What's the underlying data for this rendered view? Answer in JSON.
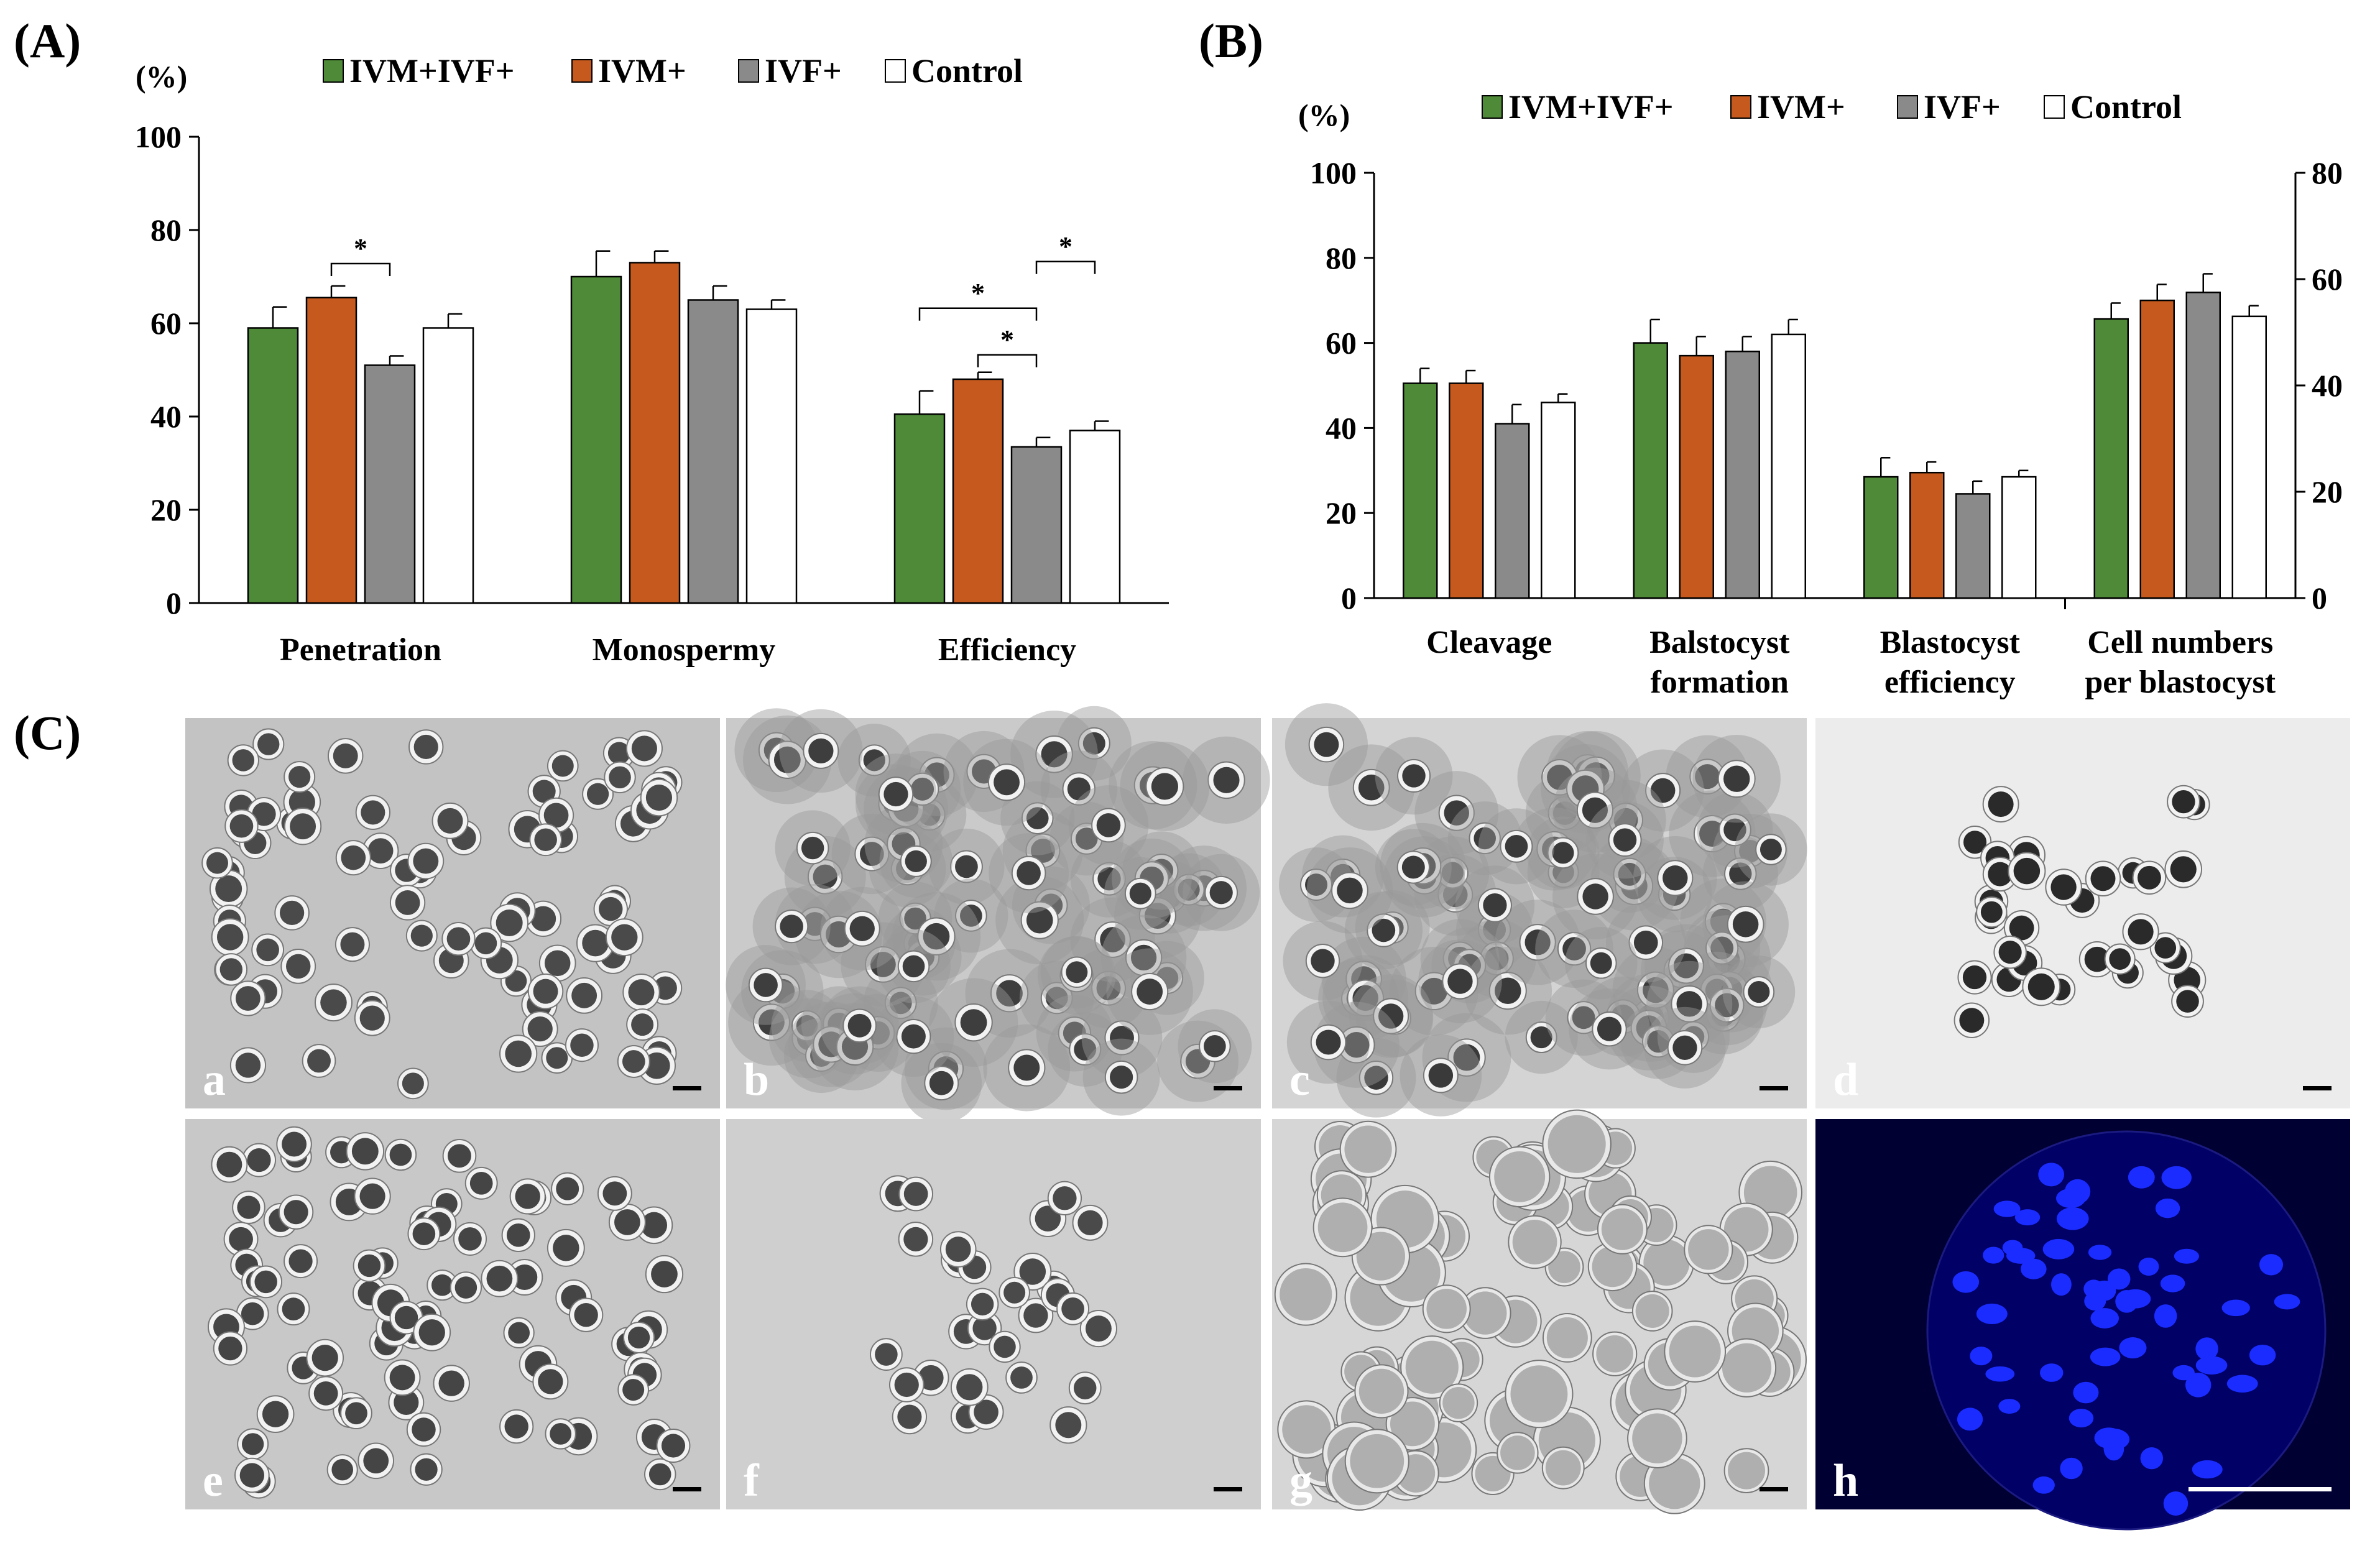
{
  "figure": {
    "panels": {
      "A": "(A)",
      "B": "(B)",
      "C": "(C)"
    },
    "legend": [
      {
        "name": "IVM+IVF+",
        "color": "#4e8a37"
      },
      {
        "name": "IVM+",
        "color": "#c65a1e"
      },
      {
        "name": "IVF+",
        "color": "#8a8a8a"
      },
      {
        "name": "Control",
        "color": "#ffffff"
      }
    ],
    "colors": {
      "axis": "#000000",
      "nuclei_background": "#000033",
      "nuclei": "#1a2cff"
    }
  },
  "chart_data": [
    {
      "type": "bar",
      "panel": "A",
      "unit": "(%)",
      "ylim": [
        0,
        100
      ],
      "yticks": [
        "0",
        "20",
        "40",
        "60",
        "80",
        "100"
      ],
      "categories": [
        "Penetration",
        "Monospermy",
        "Efficiency"
      ],
      "series": [
        {
          "name": "IVM+IVF+",
          "values": [
            59,
            70,
            40.5
          ],
          "errors": [
            4.5,
            5.5,
            5
          ]
        },
        {
          "name": "IVM+",
          "values": [
            65.5,
            73,
            48
          ],
          "errors": [
            2.5,
            2.5,
            1.5
          ]
        },
        {
          "name": "IVF+",
          "values": [
            51,
            65,
            33.5
          ],
          "errors": [
            2,
            3,
            2
          ]
        },
        {
          "name": "Control",
          "values": [
            59,
            63,
            37
          ],
          "errors": [
            3,
            2,
            2
          ]
        }
      ],
      "significance": [
        {
          "category": 0,
          "from": 1,
          "to": 2,
          "label": "*"
        },
        {
          "category": 2,
          "from": 2,
          "to": 3,
          "label": "*"
        },
        {
          "category": 2,
          "from": 0,
          "to": 2,
          "label": "*"
        },
        {
          "category": 2,
          "from": 1,
          "to": 2,
          "label": "*"
        }
      ]
    },
    {
      "type": "bar",
      "panel": "B",
      "unit": "(%)",
      "ylim": [
        0,
        100
      ],
      "yticks": [
        "0",
        "20",
        "40",
        "60",
        "80",
        "100"
      ],
      "y2lim": [
        0,
        80
      ],
      "y2ticks": [
        "0",
        "20",
        "40",
        "60",
        "80"
      ],
      "categories": [
        [
          "Cleavage"
        ],
        [
          "Balstocyst",
          "formation"
        ],
        [
          "Blastocyst",
          "efficiency"
        ],
        [
          "Cell numbers",
          "per blastocyst"
        ]
      ],
      "secondary_axis_category": 3,
      "series": [
        {
          "name": "IVM+IVF+",
          "values": [
            50.5,
            60,
            28.5,
            52.5
          ],
          "errors": [
            3.5,
            5.5,
            4.5,
            3
          ]
        },
        {
          "name": "IVM+",
          "values": [
            50.5,
            57,
            29.5,
            56
          ],
          "errors": [
            3,
            4.5,
            2.5,
            3
          ]
        },
        {
          "name": "IVF+",
          "values": [
            41,
            58,
            24.5,
            57.5
          ],
          "errors": [
            4.5,
            3.5,
            3,
            3.5
          ]
        },
        {
          "name": "Control",
          "values": [
            46,
            62,
            28.5,
            53
          ],
          "errors": [
            2,
            3.5,
            1.5,
            2
          ]
        }
      ]
    }
  ],
  "micrographs": [
    {
      "letter": "a",
      "tone": "#c3c3c3",
      "cell": "#4a4a4a"
    },
    {
      "letter": "b",
      "tone": "#cacaca",
      "cell": "#3e3e3e"
    },
    {
      "letter": "c",
      "tone": "#d4d4d4",
      "cell": "#3a3a3a"
    },
    {
      "letter": "d",
      "tone": "#ececec",
      "cell": "#2a2a2a"
    },
    {
      "letter": "e",
      "tone": "#c8c8c8",
      "cell": "#454545"
    },
    {
      "letter": "f",
      "tone": "#cfcfcf",
      "cell": "#4a4a4a"
    },
    {
      "letter": "g",
      "tone": "#d6d6d6",
      "cell": "#5a5a5a"
    },
    {
      "letter": "h",
      "tone": "#000033",
      "cell": "#1a2cff"
    }
  ]
}
